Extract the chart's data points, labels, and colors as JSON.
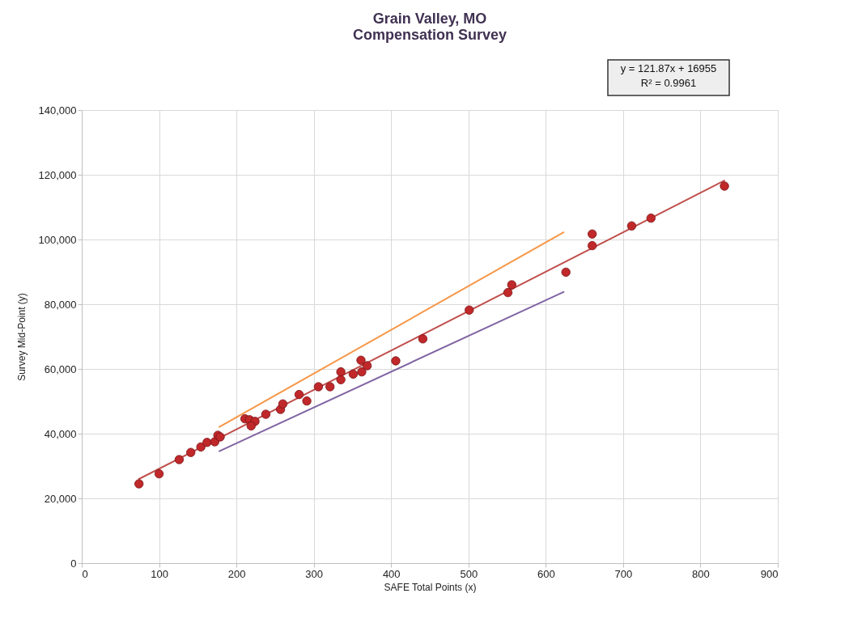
{
  "chart_data": {
    "type": "scatter",
    "title": "Grain Valley, MO\nCompensation Survey",
    "xlabel": "SAFE Total Points (x)",
    "ylabel": "Survey  Mid-Point (y)",
    "annotations": [
      "y = 121.87x + 16955",
      "R² = 0.9961"
    ],
    "series": [
      {
        "color": "#c0282a",
        "marker": "circle",
        "x": [
          74,
          100,
          126,
          141,
          154,
          162,
          172,
          176,
          179,
          211,
          217,
          224,
          219,
          238,
          257,
          260,
          281,
          291,
          306,
          321,
          335,
          335,
          351,
          362,
          361,
          369,
          406,
          441,
          501,
          551,
          556,
          626,
          660,
          660,
          711,
          736,
          831
        ],
        "values": [
          24500,
          27600,
          32000,
          34200,
          35900,
          37300,
          37500,
          39500,
          39000,
          44600,
          44300,
          43800,
          42400,
          46000,
          47500,
          49200,
          52100,
          50100,
          54500,
          54500,
          56700,
          59100,
          58400,
          59100,
          62700,
          61000,
          62500,
          69300,
          78200,
          83600,
          86000,
          89900,
          98100,
          101700,
          104200,
          106600,
          116500
        ]
      },
      {
        "type": "line",
        "color": "#c0504d",
        "x": [
          74,
          831
        ],
        "values": [
          26000,
          118200
        ]
      },
      {
        "type": "line",
        "color": "#f79646",
        "x": [
          178,
          623
        ],
        "values": [
          42100,
          102200
        ]
      },
      {
        "type": "line",
        "color": "#8064a2",
        "x": [
          178,
          623
        ],
        "values": [
          34600,
          83800
        ]
      }
    ],
    "xlim": [
      0,
      900
    ],
    "xticks": [
      0,
      100,
      200,
      300,
      400,
      500,
      600,
      700,
      800,
      900
    ],
    "ylim": [
      0,
      140000
    ],
    "yticks": [
      0,
      {
        "value": 20000,
        "label": "20,000"
      },
      {
        "value": 40000,
        "label": "40,000"
      },
      {
        "value": 60000,
        "label": "60,000"
      },
      {
        "value": 80000,
        "label": "80,000"
      },
      {
        "value": 100000,
        "label": "100,000"
      },
      {
        "value": 120000,
        "label": "120,000"
      },
      {
        "value": 140000,
        "label": "140,000"
      }
    ],
    "grid": true
  }
}
